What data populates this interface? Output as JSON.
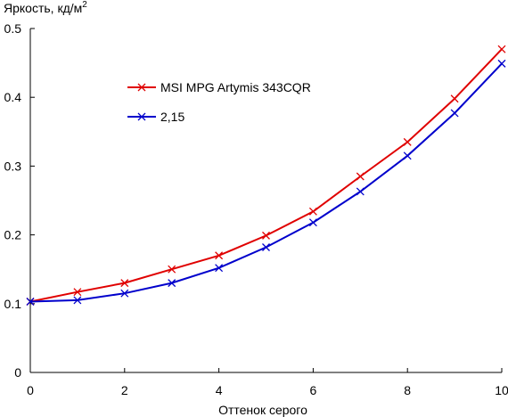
{
  "chart_data": {
    "type": "line",
    "title": "",
    "ylabel": "Яркость, кд/м",
    "ylabel_sup": "2",
    "xlabel": "Оттенок серого",
    "xlim": [
      0,
      10
    ],
    "ylim": [
      0,
      0.5
    ],
    "xticks": [
      0,
      2,
      4,
      6,
      8,
      10
    ],
    "yticks": [
      0,
      0.1,
      0.2,
      0.3,
      0.4,
      0.5
    ],
    "xtick_labels": [
      "0",
      "2",
      "4",
      "6",
      "8",
      "10"
    ],
    "ytick_labels": [
      "0",
      "0.1",
      "0.2",
      "0.3",
      "0.4",
      "0.5"
    ],
    "grid": false,
    "legend_position": "upper-left",
    "x": [
      0,
      1,
      2,
      3,
      4,
      5,
      6,
      7,
      8,
      9,
      10
    ],
    "series": [
      {
        "name": "MSI MPG Artymis 343CQR",
        "color": "#e00000",
        "marker": "x",
        "values": [
          0.103,
          0.117,
          0.13,
          0.15,
          0.17,
          0.199,
          0.234,
          0.285,
          0.335,
          0.398,
          0.47
        ]
      },
      {
        "name": "2,15",
        "color": "#0000cc",
        "marker": "x",
        "values": [
          0.103,
          0.105,
          0.115,
          0.13,
          0.152,
          0.182,
          0.218,
          0.263,
          0.315,
          0.377,
          0.449
        ]
      }
    ]
  }
}
